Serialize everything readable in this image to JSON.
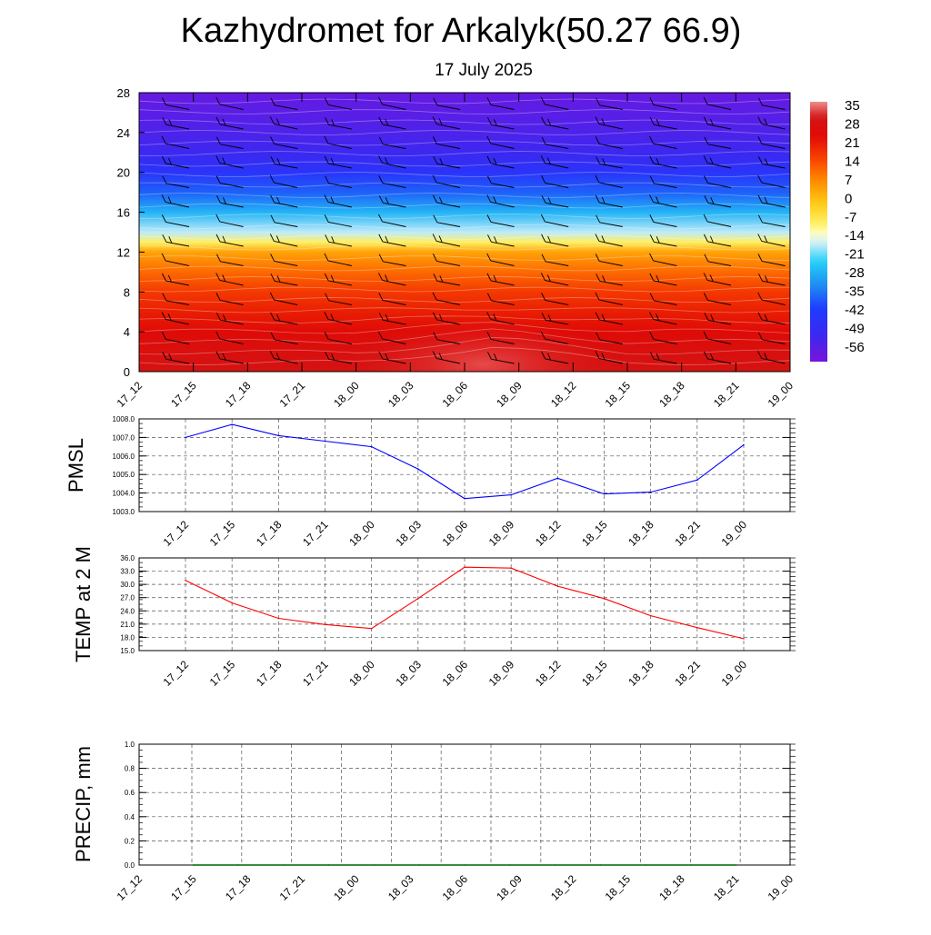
{
  "title": "Kazhydromet for Arkalyk(50.27 66.9)",
  "subtitle": "17 July 2025",
  "time_labels": [
    "17_12",
    "17_15",
    "17_18",
    "17_21",
    "18_00",
    "18_03",
    "18_06",
    "18_09",
    "18_12",
    "18_15",
    "18_18",
    "18_21",
    "19_00"
  ],
  "chart_data": [
    {
      "type": "heatmap",
      "name": "temperature-cross-section",
      "x": [
        "17_12",
        "17_15",
        "17_18",
        "17_21",
        "18_00",
        "18_03",
        "18_06",
        "18_09",
        "18_12",
        "18_15",
        "18_18",
        "18_21",
        "19_00"
      ],
      "y_ticks": [
        0,
        4,
        8,
        12,
        16,
        20,
        24,
        28
      ],
      "ylim": [
        0,
        28
      ],
      "colorbar": {
        "labels": [
          "35",
          "28",
          "21",
          "14",
          "7",
          "0",
          "-7",
          "-14",
          "-21",
          "-28",
          "-35",
          "-42",
          "-49",
          "-56"
        ],
        "range": [
          -60,
          38
        ]
      },
      "profile": [
        {
          "level": 0,
          "value": 31
        },
        {
          "level": 2,
          "value": 29
        },
        {
          "level": 4,
          "value": 26
        },
        {
          "level": 6,
          "value": 22
        },
        {
          "level": 8,
          "value": 18
        },
        {
          "level": 10,
          "value": 12
        },
        {
          "level": 12,
          "value": 5
        },
        {
          "level": 13,
          "value": -8
        },
        {
          "level": 14,
          "value": -16
        },
        {
          "level": 16,
          "value": -26
        },
        {
          "level": 18,
          "value": -36
        },
        {
          "level": 20,
          "value": -44
        },
        {
          "level": 22,
          "value": -50
        },
        {
          "level": 24,
          "value": -53
        },
        {
          "level": 26,
          "value": -55
        },
        {
          "level": 28,
          "value": -57
        }
      ],
      "warm_core": {
        "x": "18_07",
        "level": 0,
        "value": 36
      },
      "wind_barbs": true
    },
    {
      "type": "line",
      "ylabel": "PMSL",
      "x": [
        "17_12",
        "17_15",
        "17_18",
        "17_21",
        "18_00",
        "18_03",
        "18_06",
        "18_09",
        "18_12",
        "18_15",
        "18_18",
        "18_21",
        "19_00"
      ],
      "series": [
        {
          "values": [
            1007.0,
            1007.7,
            1007.1,
            1006.8,
            1006.5,
            1005.3,
            1003.7,
            1003.9,
            1004.8,
            1003.95,
            1004.05,
            1004.7,
            1006.6
          ],
          "color": "#0000ff"
        }
      ],
      "ylim": [
        1003.0,
        1008.0
      ],
      "y_ticks": [
        "1003.0",
        "1004.0",
        "1005.0",
        "1006.0",
        "1007.0",
        "1008.0"
      ],
      "grid": true
    },
    {
      "type": "line",
      "ylabel": "TEMP at 2 M",
      "x": [
        "17_12",
        "17_15",
        "17_18",
        "17_21",
        "18_00",
        "18_03",
        "18_06",
        "18_09",
        "18_12",
        "18_15",
        "18_18",
        "18_21",
        "19_00"
      ],
      "series": [
        {
          "values": [
            30.9,
            25.8,
            22.3,
            20.9,
            20.0,
            26.8,
            33.9,
            33.7,
            29.6,
            26.8,
            22.9,
            20.2,
            17.7
          ],
          "color": "#ff0000"
        }
      ],
      "ylim": [
        15.0,
        36.0
      ],
      "y_ticks": [
        "15.0",
        "18.0",
        "21.0",
        "24.0",
        "27.0",
        "30.0",
        "33.0",
        "36.0"
      ],
      "grid": true
    },
    {
      "type": "line",
      "ylabel": "PRECIP, mm",
      "x": [
        "17_12",
        "17_15",
        "17_18",
        "17_21",
        "18_00",
        "18_03",
        "18_06",
        "18_09",
        "18_12",
        "18_15",
        "18_18",
        "18_21",
        "19_00"
      ],
      "series": [
        {
          "values": [
            0,
            0,
            0,
            0,
            0,
            0,
            0,
            0,
            0,
            0,
            0,
            0,
            0
          ],
          "color": "#006400"
        }
      ],
      "ylim": [
        0.0,
        1.0
      ],
      "y_ticks": [
        "0.0",
        "0.2",
        "0.4",
        "0.6",
        "0.8",
        "1.0"
      ],
      "grid": true
    }
  ]
}
